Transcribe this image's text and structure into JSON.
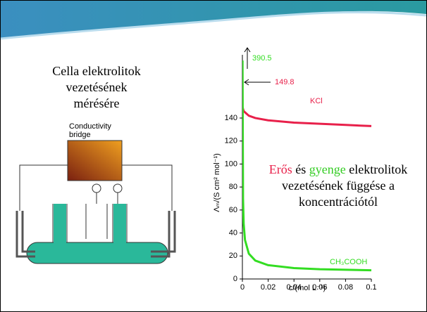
{
  "slide": {
    "caption_lines": [
      "Cella elektrolitok",
      "vezetésének",
      "mérésére"
    ],
    "bridge_label": [
      "Conductivity",
      "bridge"
    ],
    "overlay": {
      "strong": "Erős",
      "and": "és",
      "weak": "gyenge",
      "line1_rest": "elektrolitok",
      "line2": "vezetésének függése a",
      "line3": "koncentrációtól"
    }
  },
  "chart_data": {
    "type": "line",
    "xlabel": "c/(mol L⁻¹)",
    "ylabel": "Λₘ/(S cm² mol⁻¹)",
    "xlim": [
      0,
      0.1
    ],
    "ylim": [
      0,
      195
    ],
    "xticks": [
      0,
      0.02,
      0.04,
      0.06,
      0.08,
      0.1
    ],
    "yticks": [
      0,
      20,
      40,
      60,
      80,
      100,
      120,
      140
    ],
    "series": [
      {
        "name": "KCl",
        "color": "#e8204a",
        "x": [
          0,
          0.001,
          0.005,
          0.01,
          0.02,
          0.04,
          0.06,
          0.08,
          0.1
        ],
        "values": [
          149.8,
          146,
          142,
          140,
          138,
          136,
          135,
          134,
          133
        ]
      },
      {
        "name": "CH₃COOH",
        "color": "#33dd22",
        "x": [
          0.0001,
          0.0005,
          0.001,
          0.002,
          0.005,
          0.01,
          0.02,
          0.04,
          0.06,
          0.08,
          0.1
        ],
        "values": [
          190,
          70,
          48,
          34,
          22,
          16,
          12,
          9.5,
          8.5,
          8,
          7.6
        ]
      }
    ],
    "annotations": [
      {
        "value": 390.5,
        "color": "#33dd22"
      },
      {
        "value": 149.8,
        "color": "#e8204a"
      }
    ]
  }
}
